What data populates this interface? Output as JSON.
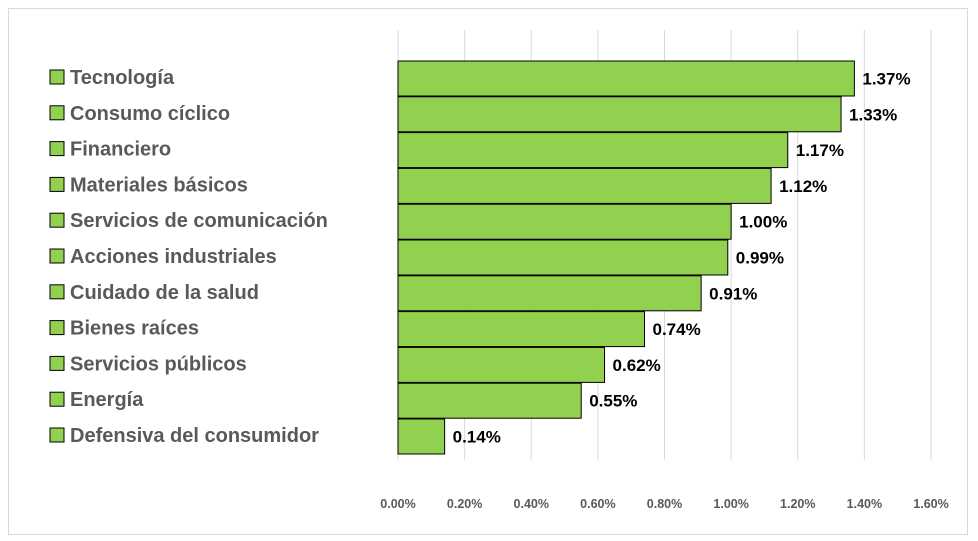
{
  "colors": {
    "bar_fill": "#92d050",
    "bar_stroke": "#000000",
    "gridline": "#d9d9d9",
    "category_text": "#595959",
    "value_text": "#000000"
  },
  "chart_data": {
    "type": "bar",
    "orientation": "horizontal",
    "categories": [
      "Tecnología",
      "Consumo cíclico",
      "Financiero",
      "Materiales básicos",
      "Servicios de comunicación",
      "Acciones industriales",
      "Cuidado de la salud",
      "Bienes raíces",
      "Servicios públicos",
      "Energía",
      "Defensiva del consumidor"
    ],
    "values": [
      1.37,
      1.33,
      1.17,
      1.12,
      1.0,
      0.99,
      0.91,
      0.74,
      0.62,
      0.55,
      0.14
    ],
    "value_labels": [
      "1.37%",
      "1.33%",
      "1.17%",
      "1.12%",
      "1.00%",
      "0.99%",
      "0.91%",
      "0.74%",
      "0.62%",
      "0.55%",
      "0.14%"
    ],
    "xlim": [
      0,
      1.6
    ],
    "xticks": [
      0,
      0.2,
      0.4,
      0.6,
      0.8,
      1.0,
      1.2,
      1.4,
      1.6
    ],
    "xtick_labels": [
      "0.00%",
      "0.20%",
      "0.40%",
      "0.60%",
      "0.80%",
      "1.00%",
      "1.20%",
      "1.40%",
      "1.60%"
    ],
    "title": "",
    "xlabel": "",
    "ylabel": "",
    "grid": "vertical",
    "legend": "left"
  }
}
